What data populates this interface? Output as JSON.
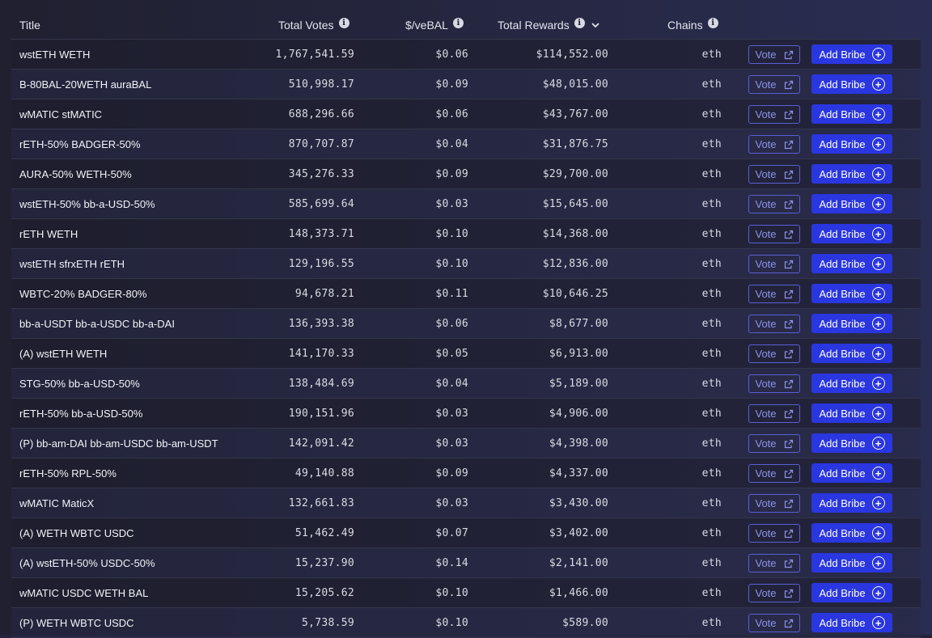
{
  "header": {
    "title": "Title",
    "total_votes": "Total Votes",
    "per_vebal": "$/veBAL",
    "total_rewards": "Total Rewards",
    "chains": "Chains"
  },
  "icons": {
    "info": "info-circle-icon",
    "sort": "chevron-down-icon",
    "external": "external-link-icon",
    "plus": "plus-circle-icon"
  },
  "buttons": {
    "vote": "Vote",
    "add_bribe": "Add Bribe"
  },
  "colors": {
    "accent": "#2a36e0",
    "vote_border": "#5a5fd4"
  },
  "rows": [
    {
      "title": "wstETH WETH",
      "votes": "1,767,541.59",
      "vebal": "$0.06",
      "rewards": "$114,552.00",
      "chain": "eth"
    },
    {
      "title": "B-80BAL-20WETH auraBAL",
      "votes": "510,998.17",
      "vebal": "$0.09",
      "rewards": "$48,015.00",
      "chain": "eth"
    },
    {
      "title": "wMATIC stMATIC",
      "votes": "688,296.66",
      "vebal": "$0.06",
      "rewards": "$43,767.00",
      "chain": "eth"
    },
    {
      "title": "rETH-50% BADGER-50%",
      "votes": "870,707.87",
      "vebal": "$0.04",
      "rewards": "$31,876.75",
      "chain": "eth"
    },
    {
      "title": "AURA-50% WETH-50%",
      "votes": "345,276.33",
      "vebal": "$0.09",
      "rewards": "$29,700.00",
      "chain": "eth"
    },
    {
      "title": "wstETH-50% bb-a-USD-50%",
      "votes": "585,699.64",
      "vebal": "$0.03",
      "rewards": "$15,645.00",
      "chain": "eth"
    },
    {
      "title": "rETH WETH",
      "votes": "148,373.71",
      "vebal": "$0.10",
      "rewards": "$14,368.00",
      "chain": "eth"
    },
    {
      "title": "wstETH sfrxETH rETH",
      "votes": "129,196.55",
      "vebal": "$0.10",
      "rewards": "$12,836.00",
      "chain": "eth"
    },
    {
      "title": "WBTC-20% BADGER-80%",
      "votes": "94,678.21",
      "vebal": "$0.11",
      "rewards": "$10,646.25",
      "chain": "eth"
    },
    {
      "title": "bb-a-USDT bb-a-USDC bb-a-DAI",
      "votes": "136,393.38",
      "vebal": "$0.06",
      "rewards": "$8,677.00",
      "chain": "eth"
    },
    {
      "title": "(A) wstETH WETH",
      "votes": "141,170.33",
      "vebal": "$0.05",
      "rewards": "$6,913.00",
      "chain": "eth"
    },
    {
      "title": "STG-50% bb-a-USD-50%",
      "votes": "138,484.69",
      "vebal": "$0.04",
      "rewards": "$5,189.00",
      "chain": "eth"
    },
    {
      "title": "rETH-50% bb-a-USD-50%",
      "votes": "190,151.96",
      "vebal": "$0.03",
      "rewards": "$4,906.00",
      "chain": "eth"
    },
    {
      "title": "(P) bb-am-DAI bb-am-USDC bb-am-USDT",
      "votes": "142,091.42",
      "vebal": "$0.03",
      "rewards": "$4,398.00",
      "chain": "eth"
    },
    {
      "title": "rETH-50% RPL-50%",
      "votes": "49,140.88",
      "vebal": "$0.09",
      "rewards": "$4,337.00",
      "chain": "eth"
    },
    {
      "title": "wMATIC MaticX",
      "votes": "132,661.83",
      "vebal": "$0.03",
      "rewards": "$3,430.00",
      "chain": "eth"
    },
    {
      "title": "(A) WETH WBTC USDC",
      "votes": "51,462.49",
      "vebal": "$0.07",
      "rewards": "$3,402.00",
      "chain": "eth"
    },
    {
      "title": "(A) wstETH-50% USDC-50%",
      "votes": "15,237.90",
      "vebal": "$0.14",
      "rewards": "$2,141.00",
      "chain": "eth"
    },
    {
      "title": "wMATIC USDC WETH BAL",
      "votes": "15,205.62",
      "vebal": "$0.10",
      "rewards": "$1,466.00",
      "chain": "eth"
    },
    {
      "title": "(P) WETH WBTC USDC",
      "votes": "5,738.59",
      "vebal": "$0.10",
      "rewards": "$589.00",
      "chain": "eth"
    }
  ]
}
